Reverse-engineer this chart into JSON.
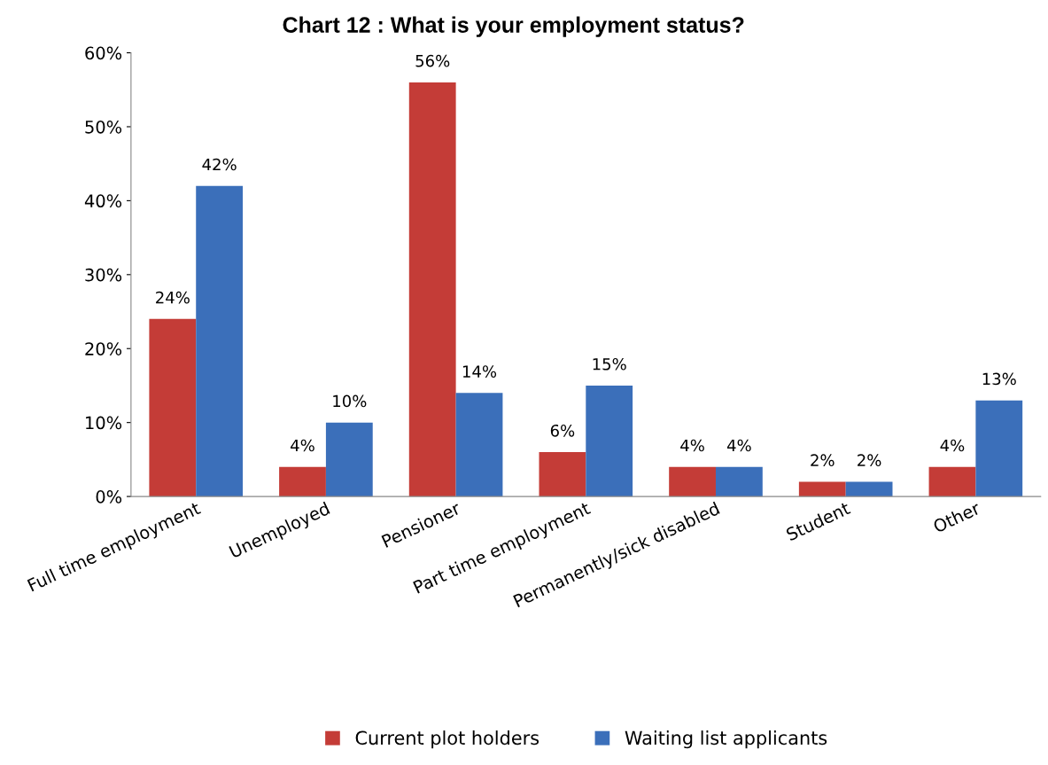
{
  "chart_data": {
    "type": "bar",
    "title": "Chart 12 : What is your employment status?",
    "categories": [
      "Full time employment",
      "Unemployed",
      "Pensioner",
      "Part time employment",
      "Permanently/sick disabled",
      "Student",
      "Other"
    ],
    "series": [
      {
        "name": "Current plot holders",
        "color": "#c43c37",
        "values": [
          24,
          4,
          56,
          6,
          4,
          2,
          4
        ],
        "value_labels": [
          "24%",
          "4%",
          "56%",
          "6%",
          "4%",
          "2%",
          "4%"
        ]
      },
      {
        "name": "Waiting list applicants",
        "color": "#3b6fba",
        "values": [
          42,
          10,
          14,
          15,
          4,
          2,
          13
        ],
        "value_labels": [
          "42%",
          "10%",
          "14%",
          "15%",
          "4%",
          "2%",
          "13%"
        ]
      }
    ],
    "ylim": [
      0,
      60
    ],
    "yticks": [
      {
        "value": 0,
        "label": "0%"
      },
      {
        "value": 10,
        "label": "10%"
      },
      {
        "value": 20,
        "label": "20%"
      },
      {
        "value": 30,
        "label": "30%"
      },
      {
        "value": 40,
        "label": "40%"
      },
      {
        "value": 50,
        "label": "50%"
      },
      {
        "value": 60,
        "label": "60%"
      }
    ],
    "grid": false,
    "legend": "bottom"
  }
}
